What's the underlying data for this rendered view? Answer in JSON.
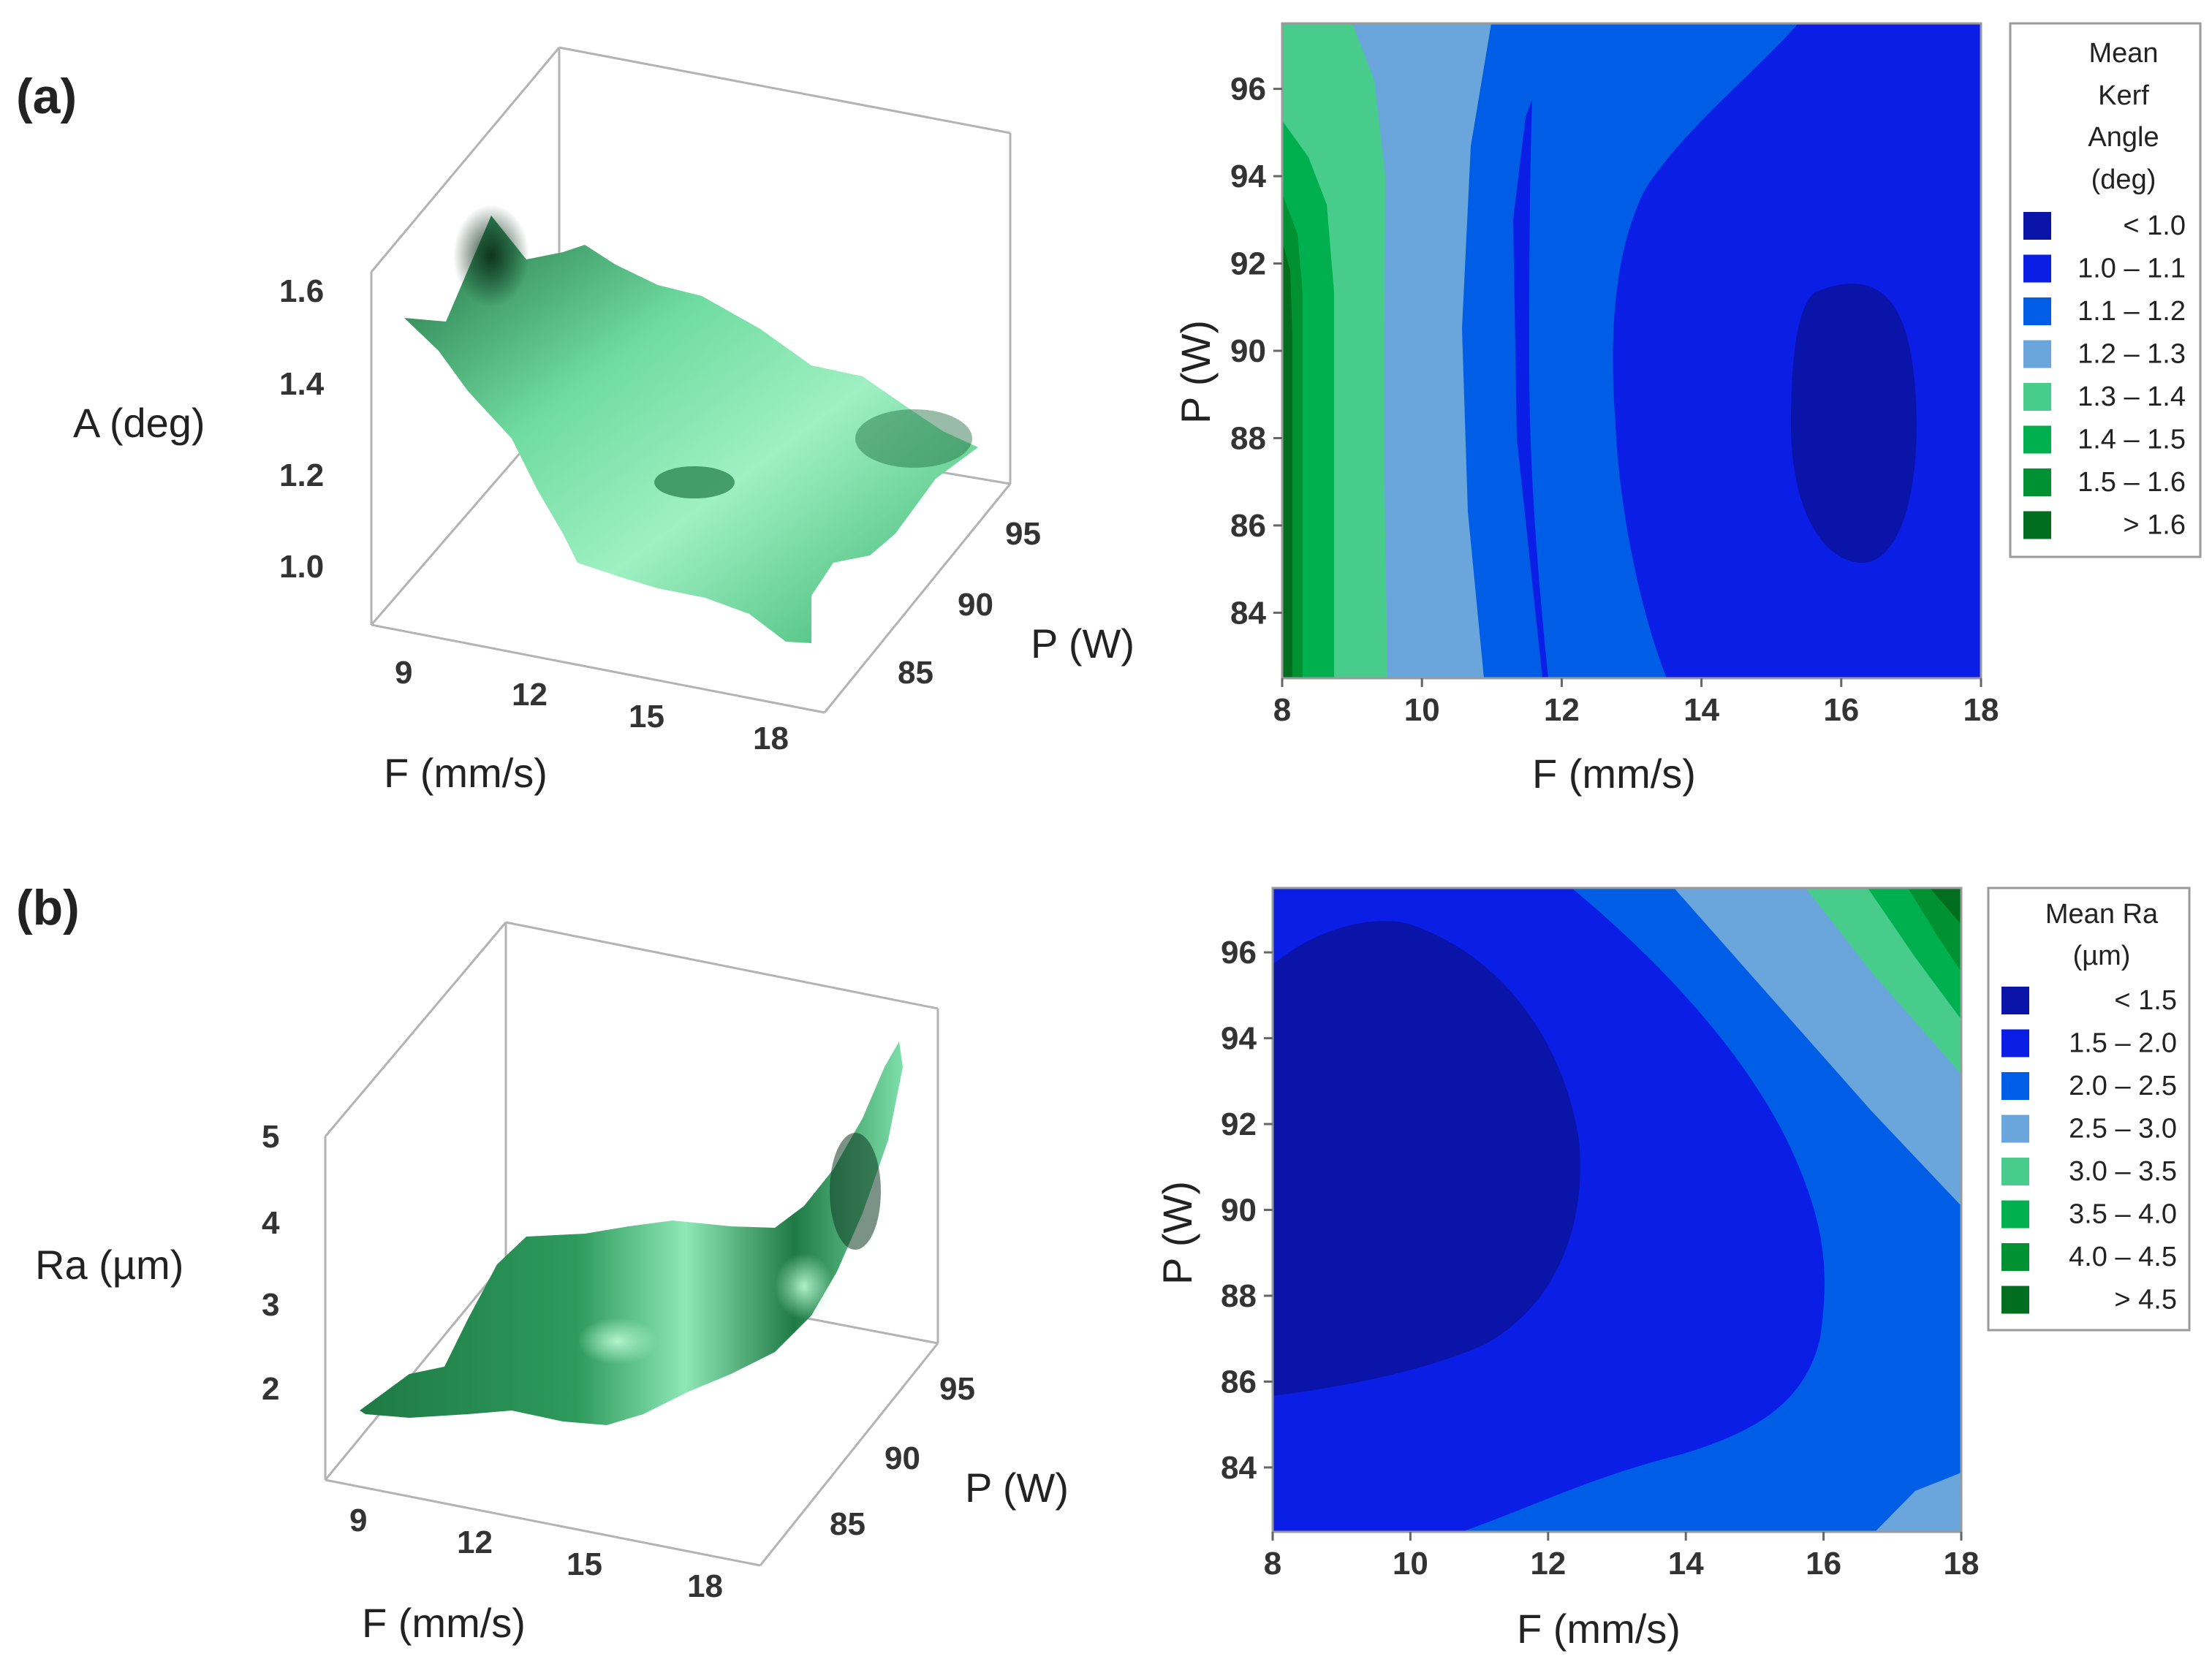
{
  "chart_data": [
    {
      "id": "a-surface",
      "panel_label": "(a)",
      "type": "surface",
      "zlabel": "A (deg)",
      "xlabel": "F (mm/s)",
      "ylabel": "P (W)",
      "z_ticks": [
        "1.0",
        "1.2",
        "1.4",
        "1.6"
      ],
      "x_ticks": [
        "9",
        "12",
        "15",
        "18"
      ],
      "y_ticks": [
        "85",
        "90",
        "95"
      ],
      "surface_colors": {
        "dark": "#0f3b22",
        "mid": "#2e9a5c",
        "light": "#a8f0c6"
      }
    },
    {
      "id": "a-contour",
      "type": "contour",
      "xlabel": "F (mm/s)",
      "ylabel": "P (W)",
      "x_ticks": [
        "8",
        "10",
        "12",
        "14",
        "16",
        "18"
      ],
      "y_ticks": [
        "84",
        "86",
        "88",
        "90",
        "92",
        "94",
        "96"
      ],
      "xlim": [
        8,
        18
      ],
      "ylim": [
        82.5,
        97.5
      ],
      "legend": {
        "title": [
          "Mean",
          "Kerf",
          "Angle",
          "(deg)"
        ],
        "entries": [
          {
            "label": "< 1.0",
            "color": "#0a14a8"
          },
          {
            "label": "1.0 – 1.1",
            "color": "#0a1ee6"
          },
          {
            "label": "1.1 – 1.2",
            "color": "#005ee6"
          },
          {
            "label": "1.2 – 1.3",
            "color": "#6aa6dc"
          },
          {
            "label": "1.3 – 1.4",
            "color": "#48cc8c"
          },
          {
            "label": "1.4 – 1.5",
            "color": "#00b04e"
          },
          {
            "label": "1.5 – 1.6",
            "color": "#009232"
          },
          {
            "label": "> 1.6",
            "color": "#006e1e"
          }
        ]
      }
    },
    {
      "id": "b-surface",
      "panel_label": "(b)",
      "type": "surface",
      "zlabel": "Ra (µm)",
      "xlabel": "F (mm/s)",
      "ylabel": "P (W)",
      "z_ticks": [
        "2",
        "3",
        "4",
        "5"
      ],
      "x_ticks": [
        "9",
        "12",
        "15",
        "18"
      ],
      "y_ticks": [
        "85",
        "90",
        "95"
      ],
      "surface_colors": {
        "dark": "#0f3b22",
        "mid": "#2e9a5c",
        "light": "#a8f0c6"
      }
    },
    {
      "id": "b-contour",
      "type": "contour",
      "xlabel": "F (mm/s)",
      "ylabel": "P (W)",
      "x_ticks": [
        "8",
        "10",
        "12",
        "14",
        "16",
        "18"
      ],
      "y_ticks": [
        "84",
        "86",
        "88",
        "90",
        "92",
        "94",
        "96"
      ],
      "xlim": [
        8,
        18
      ],
      "ylim": [
        82.5,
        97.5
      ],
      "legend": {
        "title": [
          "Mean Ra",
          "(µm)"
        ],
        "entries": [
          {
            "label": "< 1.5",
            "color": "#0a14a8"
          },
          {
            "label": "1.5 – 2.0",
            "color": "#0a1ee6"
          },
          {
            "label": "2.0 – 2.5",
            "color": "#005ee6"
          },
          {
            "label": "2.5 – 3.0",
            "color": "#6aa6dc"
          },
          {
            "label": "3.0 – 3.5",
            "color": "#48cc8c"
          },
          {
            "label": "3.5 – 4.0",
            "color": "#00b04e"
          },
          {
            "label": "4.0 – 4.5",
            "color": "#009232"
          },
          {
            "label": "> 4.5",
            "color": "#006e1e"
          }
        ]
      }
    }
  ]
}
